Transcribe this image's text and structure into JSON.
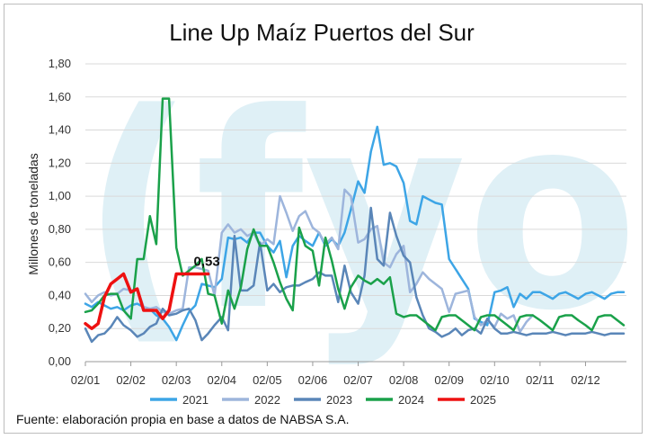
{
  "chart_data": {
    "type": "line",
    "title": "Line Up Maíz Puertos del Sur",
    "ylabel": "Millones de toneladas",
    "xlabel": "",
    "ylim": [
      0,
      1.8
    ],
    "yticks": [
      0,
      0.2,
      0.4,
      0.6,
      0.8,
      1.0,
      1.2,
      1.4,
      1.6,
      1.8
    ],
    "yticklabels": [
      "0,00",
      "0,20",
      "0,40",
      "0,60",
      "0,80",
      "1,00",
      "1,20",
      "1,40",
      "1,60",
      "1,80"
    ],
    "xticks": [
      0,
      1,
      2,
      3,
      4,
      5,
      6,
      7,
      8,
      9,
      10,
      11
    ],
    "xticklabels": [
      "02/01",
      "02/02",
      "02/03",
      "02/04",
      "02/05",
      "02/06",
      "02/07",
      "02/08",
      "02/09",
      "02/10",
      "02/11",
      "02/12"
    ],
    "grid": true,
    "legend": "bottom",
    "annotation": {
      "text": "0,53",
      "x": 2.75,
      "y": 0.53
    },
    "series": [
      {
        "name": "2021",
        "color": "#3da5e6",
        "x": [
          0,
          0.14,
          0.28,
          0.42,
          0.56,
          0.7,
          0.84,
          1.0,
          1.14,
          1.28,
          1.42,
          1.56,
          1.7,
          1.84,
          2.0,
          2.14,
          2.28,
          2.42,
          2.56,
          2.7,
          2.84,
          3.0,
          3.14,
          3.28,
          3.42,
          3.56,
          3.7,
          3.84,
          4.0,
          4.14,
          4.28,
          4.42,
          4.56,
          4.7,
          4.84,
          5.0,
          5.14,
          5.28,
          5.42,
          5.56,
          5.7,
          5.84,
          6.0,
          6.14,
          6.28,
          6.42,
          6.56,
          6.7,
          6.84,
          7.0,
          7.14,
          7.28,
          7.42,
          7.56,
          7.7,
          7.84,
          8.0,
          8.14,
          8.28,
          8.42,
          8.56,
          8.7,
          8.84,
          9.0,
          9.14,
          9.28,
          9.42,
          9.56,
          9.7,
          9.84,
          10.0,
          10.14,
          10.28,
          10.42,
          10.56,
          10.7,
          10.84,
          11.0,
          11.14,
          11.28,
          11.42,
          11.56,
          11.7,
          11.84
        ],
        "y": [
          0.35,
          0.33,
          0.36,
          0.34,
          0.32,
          0.33,
          0.31,
          0.34,
          0.35,
          0.33,
          0.32,
          0.28,
          0.26,
          0.21,
          0.13,
          0.22,
          0.3,
          0.34,
          0.47,
          0.46,
          0.45,
          0.5,
          0.75,
          0.74,
          0.75,
          0.72,
          0.78,
          0.78,
          0.7,
          0.66,
          0.73,
          0.51,
          0.7,
          0.76,
          0.73,
          0.7,
          0.78,
          0.7,
          0.74,
          0.7,
          0.78,
          0.92,
          1.09,
          1.02,
          1.27,
          1.42,
          1.19,
          1.2,
          1.18,
          1.08,
          0.85,
          0.83,
          1.0,
          0.98,
          0.96,
          0.95,
          0.62,
          0.56,
          0.5,
          0.44,
          0.26,
          0.24,
          0.22,
          0.42,
          0.43,
          0.45,
          0.33,
          0.41,
          0.38,
          0.42,
          0.42,
          0.4,
          0.38,
          0.41,
          0.42,
          0.4,
          0.38,
          0.41,
          0.42,
          0.4,
          0.38,
          0.41,
          0.42,
          0.42
        ]
      },
      {
        "name": "2022",
        "color": "#9db5dc",
        "x": [
          0,
          0.14,
          0.28,
          0.42,
          0.56,
          0.7,
          0.84,
          1.0,
          1.14,
          1.28,
          1.42,
          1.56,
          1.7,
          1.84,
          2.0,
          2.14,
          2.28,
          2.42,
          2.56,
          2.7,
          2.84,
          3.0,
          3.14,
          3.28,
          3.42,
          3.56,
          3.7,
          3.84,
          4.0,
          4.14,
          4.28,
          4.42,
          4.56,
          4.7,
          4.84,
          5.0,
          5.14,
          5.28,
          5.42,
          5.56,
          5.7,
          5.84,
          6.0,
          6.14,
          6.28,
          6.42,
          6.56,
          6.7,
          6.84,
          7.0,
          7.14,
          7.28,
          7.42,
          7.56,
          7.7,
          7.84,
          8.0,
          8.14,
          8.28,
          8.42,
          8.56,
          8.7,
          8.84,
          9.0,
          9.14,
          9.28,
          9.42,
          9.56,
          9.7,
          9.84
        ],
        "y": [
          0.41,
          0.36,
          0.4,
          0.42,
          0.4,
          0.41,
          0.44,
          0.43,
          0.44,
          0.33,
          0.32,
          0.33,
          0.3,
          0.29,
          0.31,
          0.32,
          0.57,
          0.57,
          0.56,
          0.55,
          0.4,
          0.78,
          0.83,
          0.78,
          0.8,
          0.76,
          0.78,
          0.7,
          0.74,
          0.71,
          1.0,
          0.9,
          0.79,
          0.88,
          0.91,
          0.81,
          0.78,
          0.71,
          0.75,
          0.68,
          1.04,
          1.0,
          0.72,
          0.74,
          0.8,
          0.82,
          0.6,
          0.57,
          0.65,
          0.7,
          0.42,
          0.47,
          0.54,
          0.5,
          0.47,
          0.44,
          0.3,
          0.41,
          0.42,
          0.43,
          0.27,
          0.22,
          0.25,
          0.21,
          0.29,
          0.26,
          0.28,
          0.18,
          0.24,
          0.28
        ]
      },
      {
        "name": "2023",
        "color": "#5a86b8",
        "x": [
          0,
          0.14,
          0.28,
          0.42,
          0.56,
          0.7,
          0.84,
          1.0,
          1.14,
          1.28,
          1.42,
          1.56,
          1.7,
          1.84,
          2.0,
          2.14,
          2.28,
          2.42,
          2.56,
          2.7,
          2.84,
          3.0,
          3.14,
          3.28,
          3.42,
          3.56,
          3.7,
          3.84,
          4.0,
          4.14,
          4.28,
          4.42,
          4.56,
          4.7,
          4.84,
          5.0,
          5.14,
          5.28,
          5.42,
          5.56,
          5.7,
          5.84,
          6.0,
          6.14,
          6.28,
          6.42,
          6.56,
          6.7,
          6.84,
          7.0,
          7.14,
          7.28,
          7.42,
          7.56,
          7.7,
          7.84,
          8.0,
          8.14,
          8.28,
          8.42,
          8.56,
          8.7,
          8.84,
          9.0,
          9.14,
          9.28,
          9.42,
          9.56,
          9.7,
          9.84,
          10.0,
          10.14,
          10.28,
          10.42,
          10.56,
          10.7,
          10.84,
          11.0,
          11.14,
          11.28,
          11.42,
          11.56,
          11.7,
          11.84
        ],
        "y": [
          0.2,
          0.12,
          0.16,
          0.17,
          0.21,
          0.27,
          0.22,
          0.19,
          0.15,
          0.17,
          0.21,
          0.23,
          0.32,
          0.28,
          0.29,
          0.31,
          0.32,
          0.25,
          0.13,
          0.17,
          0.22,
          0.27,
          0.19,
          0.76,
          0.43,
          0.43,
          0.46,
          0.72,
          0.43,
          0.47,
          0.42,
          0.45,
          0.46,
          0.46,
          0.48,
          0.5,
          0.54,
          0.52,
          0.52,
          0.36,
          0.58,
          0.42,
          0.35,
          0.52,
          0.93,
          0.62,
          0.58,
          0.9,
          0.76,
          0.64,
          0.6,
          0.39,
          0.28,
          0.2,
          0.18,
          0.15,
          0.17,
          0.2,
          0.16,
          0.19,
          0.2,
          0.17,
          0.26,
          0.2,
          0.17,
          0.17,
          0.18,
          0.17,
          0.16,
          0.17,
          0.17,
          0.17,
          0.18,
          0.17,
          0.16,
          0.17,
          0.17,
          0.17,
          0.18,
          0.17,
          0.16,
          0.17,
          0.17,
          0.17
        ]
      },
      {
        "name": "2024",
        "color": "#1aa14a",
        "x": [
          0,
          0.14,
          0.28,
          0.42,
          0.56,
          0.7,
          0.84,
          1.0,
          1.14,
          1.28,
          1.42,
          1.56,
          1.7,
          1.84,
          2.0,
          2.14,
          2.28,
          2.42,
          2.56,
          2.7,
          2.84,
          3.0,
          3.14,
          3.28,
          3.42,
          3.56,
          3.7,
          3.84,
          4.0,
          4.14,
          4.28,
          4.42,
          4.56,
          4.7,
          4.84,
          5.0,
          5.14,
          5.28,
          5.42,
          5.56,
          5.7,
          5.84,
          6.0,
          6.14,
          6.28,
          6.42,
          6.56,
          6.7,
          6.84,
          7.0,
          7.14,
          7.28,
          7.42,
          7.56,
          7.7,
          7.84,
          8.0,
          8.14,
          8.28,
          8.42,
          8.56,
          8.7,
          8.84,
          9.0,
          9.14,
          9.28,
          9.42,
          9.56,
          9.7,
          9.84,
          10.0,
          10.14,
          10.28,
          10.42,
          10.56,
          10.7,
          10.84,
          11.0,
          11.14,
          11.28,
          11.42,
          11.56,
          11.7,
          11.84
        ],
        "y": [
          0.3,
          0.31,
          0.35,
          0.4,
          0.41,
          0.41,
          0.31,
          0.26,
          0.62,
          0.62,
          0.88,
          0.71,
          1.59,
          1.59,
          0.69,
          0.52,
          0.55,
          0.58,
          0.62,
          0.41,
          0.4,
          0.23,
          0.43,
          0.32,
          0.45,
          0.68,
          0.8,
          0.7,
          0.7,
          0.6,
          0.48,
          0.38,
          0.31,
          0.81,
          0.7,
          0.67,
          0.46,
          0.75,
          0.61,
          0.44,
          0.32,
          0.45,
          0.52,
          0.49,
          0.47,
          0.5,
          0.47,
          0.51,
          0.29,
          0.27,
          0.28,
          0.28,
          0.25,
          0.22,
          0.19,
          0.27,
          0.28,
          0.28,
          0.25,
          0.22,
          0.19,
          0.27,
          0.28,
          0.28,
          0.25,
          0.22,
          0.19,
          0.27,
          0.28,
          0.28,
          0.25,
          0.22,
          0.19,
          0.27,
          0.28,
          0.28,
          0.25,
          0.22,
          0.19,
          0.27,
          0.28,
          0.28,
          0.25,
          0.22
        ]
      },
      {
        "name": "2025",
        "color": "#ee1111",
        "x": [
          0,
          0.14,
          0.28,
          0.42,
          0.56,
          0.7,
          0.84,
          1.0,
          1.14,
          1.28,
          1.42,
          1.56,
          1.7,
          1.84,
          2.0,
          2.14,
          2.28,
          2.42,
          2.56,
          2.7
        ],
        "y": [
          0.23,
          0.2,
          0.23,
          0.39,
          0.47,
          0.5,
          0.53,
          0.42,
          0.44,
          0.31,
          0.31,
          0.31,
          0.26,
          0.31,
          0.53,
          0.53,
          0.53,
          0.53,
          0.53,
          0.53
        ]
      }
    ]
  },
  "footer": {
    "source": "Fuente: elaboración propia en base a datos de NABSA S.A."
  },
  "watermark": {
    "text": "(fyo",
    "color": "#dff0f6"
  }
}
